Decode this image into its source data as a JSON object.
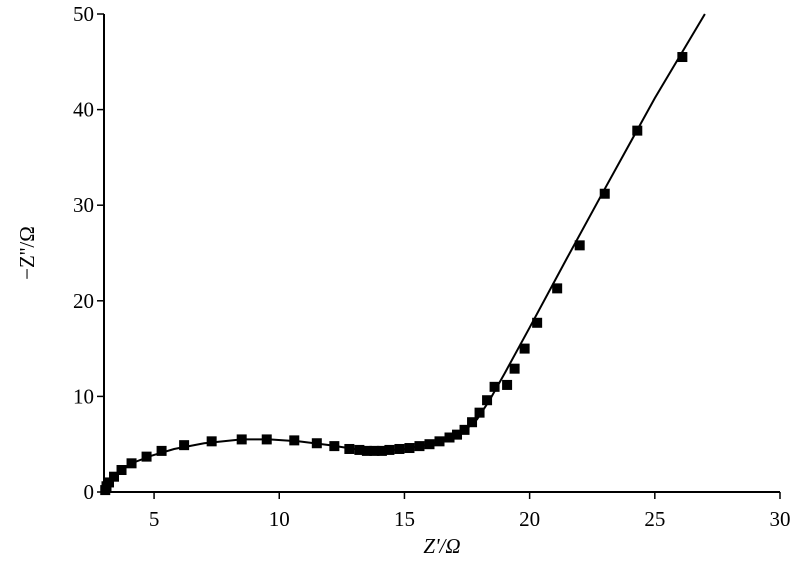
{
  "chart_data": {
    "type": "scatter",
    "x_label": "Z'/Ω",
    "y_label": "−Z''/Ω",
    "xlim": [
      3,
      30
    ],
    "ylim": [
      0,
      50
    ],
    "xticks": [
      5,
      10,
      15,
      20,
      25,
      30
    ],
    "yticks": [
      0,
      10,
      20,
      30,
      40,
      50
    ],
    "series": [
      {
        "style": "markers",
        "marker": "square",
        "color": "#000000",
        "x": [
          3.05,
          3.1,
          3.2,
          3.4,
          3.7,
          4.1,
          4.7,
          5.3,
          6.2,
          7.3,
          8.5,
          9.5,
          10.6,
          11.5,
          12.2,
          12.8,
          13.2,
          13.5,
          13.8,
          14.1,
          14.4,
          14.8,
          15.2,
          15.6,
          16.0,
          16.4,
          16.8,
          17.1,
          17.4,
          17.7,
          18.0,
          18.3,
          18.6,
          19.1,
          19.4,
          19.8,
          20.3,
          21.1,
          22.0,
          23.0,
          24.3,
          26.1
        ],
        "values": [
          0.2,
          0.6,
          1.0,
          1.6,
          2.3,
          3.0,
          3.7,
          4.3,
          4.9,
          5.3,
          5.5,
          5.5,
          5.4,
          5.1,
          4.8,
          4.5,
          4.4,
          4.3,
          4.3,
          4.3,
          4.4,
          4.5,
          4.6,
          4.8,
          5.0,
          5.3,
          5.7,
          6.0,
          6.5,
          7.3,
          8.3,
          9.6,
          11.0,
          11.2,
          12.9,
          15.0,
          17.7,
          21.3,
          25.8,
          31.2,
          37.8,
          45.5
        ]
      },
      {
        "style": "line",
        "color": "#000000",
        "x": [
          3.0,
          3.1,
          3.3,
          3.7,
          4.2,
          4.9,
          5.8,
          7.0,
          8.5,
          9.6,
          10.8,
          12.0,
          13.0,
          14.0,
          15.0,
          16.0,
          16.8,
          17.4,
          17.9,
          18.4,
          19.0,
          20.0,
          21.5,
          23.0,
          25.0,
          27.0
        ],
        "values": [
          0.0,
          0.7,
          1.4,
          2.3,
          3.1,
          3.8,
          4.5,
          5.1,
          5.5,
          5.5,
          5.3,
          4.9,
          4.5,
          4.3,
          4.5,
          5.0,
          5.6,
          6.4,
          7.6,
          9.6,
          12.4,
          17.2,
          24.5,
          31.7,
          41.2,
          50.0
        ]
      }
    ]
  }
}
